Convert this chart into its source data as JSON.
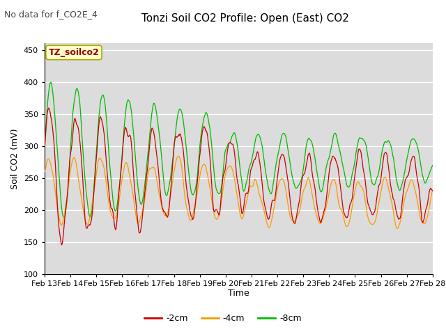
{
  "title": "Tonzi Soil CO2 Profile: Open (East) CO2",
  "subtitle": "No data for f_CO2E_4",
  "xlabel": "Time",
  "ylabel": "Soil CO2 (mV)",
  "ylim": [
    100,
    460
  ],
  "yticks": [
    100,
    150,
    200,
    250,
    300,
    350,
    400,
    450
  ],
  "x_labels": [
    "Feb 13",
    "Feb 14",
    "Feb 15",
    "Feb 16",
    "Feb 17",
    "Feb 18",
    "Feb 19",
    "Feb 20",
    "Feb 21",
    "Feb 22",
    "Feb 23",
    "Feb 24",
    "Feb 25",
    "Feb 26",
    "Feb 27",
    "Feb 28"
  ],
  "legend_labels": [
    "-2cm",
    "-4cm",
    "-8cm"
  ],
  "line_colors": [
    "#cc0000",
    "#ff9900",
    "#00bb00"
  ],
  "background_color": "#dcdcdc",
  "fig_facecolor": "#ffffff",
  "box_facecolor": "#ffffcc",
  "box_edgecolor": "#aaaa00",
  "box_label": "TZ_soilco2",
  "box_label_color": "#990000",
  "grid_color": "#ffffff",
  "subtitle_color": "#444444",
  "n_points": 960
}
